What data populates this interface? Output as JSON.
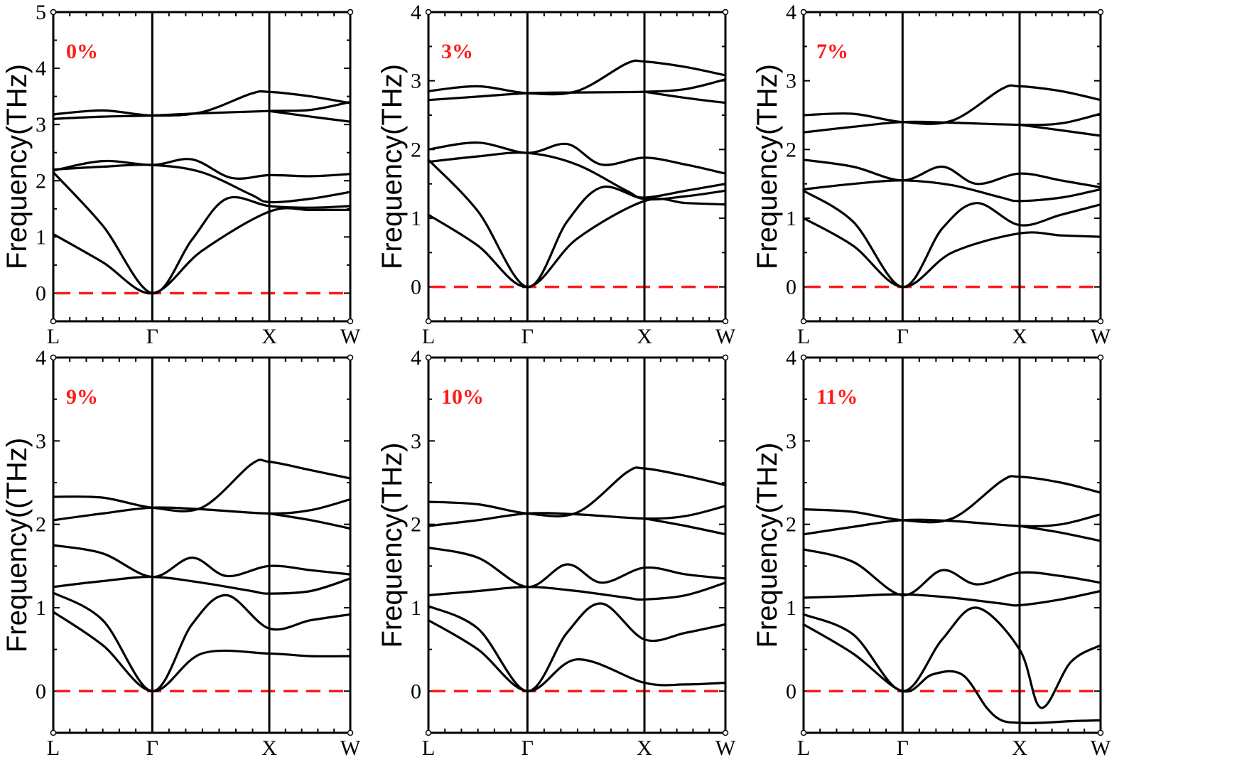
{
  "chart_data": [
    {
      "type": "line",
      "annotation": "0%",
      "ylabel": "Frequency(THz)",
      "ylim": [
        -0.5,
        5
      ],
      "yticks": [
        0,
        1,
        2,
        3,
        4,
        5
      ],
      "x_range": [
        0,
        3
      ],
      "kpoints": [
        {
          "label": "L",
          "x": 0
        },
        {
          "label": "Γ",
          "x": 1
        },
        {
          "label": "X",
          "x": 2.182
        },
        {
          "label": "W",
          "x": 3
        }
      ],
      "zero_line": {
        "y": 0,
        "color": "#ff1a1a",
        "style": "dashed"
      },
      "series": [
        {
          "x": [
            0,
            0.5,
            1,
            1.5,
            2.182,
            2.6,
            3
          ],
          "y": [
            1.05,
            0.55,
            0,
            0.75,
            1.45,
            1.48,
            1.48
          ]
        },
        {
          "x": [
            0,
            0.5,
            1,
            1.4,
            1.75,
            2.182,
            2.6,
            3
          ],
          "y": [
            2.15,
            1.2,
            0,
            0.95,
            1.68,
            1.55,
            1.52,
            1.55
          ]
        },
        {
          "x": [
            0,
            0.5,
            1,
            1.5,
            2.0,
            2.182,
            2.6,
            3
          ],
          "y": [
            2.2,
            2.25,
            2.28,
            2.15,
            1.75,
            1.62,
            1.68,
            1.8
          ]
        },
        {
          "x": [
            0,
            0.5,
            1,
            1.4,
            1.8,
            2.182,
            2.6,
            3
          ],
          "y": [
            2.18,
            2.35,
            2.28,
            2.38,
            2.05,
            2.1,
            2.08,
            2.12
          ]
        },
        {
          "x": [
            0,
            0.5,
            1,
            1.5,
            2.182,
            2.6,
            3
          ],
          "y": [
            3.1,
            3.14,
            3.16,
            3.2,
            3.24,
            3.26,
            3.4
          ]
        },
        {
          "x": [
            0,
            0.5,
            1,
            1.5,
            2.0,
            2.182,
            2.6,
            3
          ],
          "y": [
            3.18,
            3.25,
            3.16,
            3.22,
            3.55,
            3.58,
            3.5,
            3.38
          ]
        },
        {
          "x": [
            2.182,
            2.6,
            3
          ],
          "y": [
            3.24,
            3.14,
            3.05
          ]
        }
      ]
    },
    {
      "type": "line",
      "annotation": "3%",
      "ylabel": "Frequency(THz)",
      "ylim": [
        -0.5,
        4
      ],
      "yticks": [
        0,
        1,
        2,
        3,
        4
      ],
      "x_range": [
        0,
        3
      ],
      "kpoints": [
        {
          "label": "L",
          "x": 0
        },
        {
          "label": "Γ",
          "x": 1
        },
        {
          "label": "X",
          "x": 2.182
        },
        {
          "label": "W",
          "x": 3
        }
      ],
      "zero_line": {
        "y": 0,
        "color": "#ff1a1a",
        "style": "dashed"
      },
      "series": [
        {
          "x": [
            0,
            0.5,
            1,
            1.5,
            2.182,
            2.6,
            3
          ],
          "y": [
            1.05,
            0.6,
            0,
            0.7,
            1.25,
            1.22,
            1.2
          ]
        },
        {
          "x": [
            0,
            0.5,
            1,
            1.4,
            1.75,
            2.182,
            2.6,
            3
          ],
          "y": [
            1.85,
            1.1,
            0,
            0.95,
            1.45,
            1.28,
            1.32,
            1.4
          ]
        },
        {
          "x": [
            0,
            0.5,
            1,
            1.5,
            2.0,
            2.182,
            2.6,
            3
          ],
          "y": [
            1.82,
            1.9,
            1.95,
            1.78,
            1.4,
            1.3,
            1.4,
            1.5
          ]
        },
        {
          "x": [
            0,
            0.5,
            1,
            1.4,
            1.75,
            2.182,
            2.6,
            3
          ],
          "y": [
            2.0,
            2.1,
            1.95,
            2.08,
            1.78,
            1.88,
            1.78,
            1.65
          ]
        },
        {
          "x": [
            0,
            0.5,
            1,
            1.5,
            2.182,
            2.6,
            3
          ],
          "y": [
            2.72,
            2.77,
            2.82,
            2.83,
            2.84,
            2.88,
            3.02
          ]
        },
        {
          "x": [
            0,
            0.5,
            1,
            1.5,
            2.0,
            2.182,
            2.6,
            3
          ],
          "y": [
            2.85,
            2.92,
            2.82,
            2.85,
            3.25,
            3.28,
            3.2,
            3.08
          ]
        },
        {
          "x": [
            2.182,
            2.6,
            3
          ],
          "y": [
            2.84,
            2.75,
            2.68
          ]
        }
      ]
    },
    {
      "type": "line",
      "annotation": "7%",
      "ylabel": "Frequency(THz)",
      "ylim": [
        -0.5,
        4
      ],
      "yticks": [
        0,
        1,
        2,
        3,
        4
      ],
      "x_range": [
        0,
        3
      ],
      "kpoints": [
        {
          "label": "L",
          "x": 0
        },
        {
          "label": "Γ",
          "x": 1
        },
        {
          "label": "X",
          "x": 2.182
        },
        {
          "label": "W",
          "x": 3
        }
      ],
      "zero_line": {
        "y": 0,
        "color": "#ff1a1a",
        "style": "dashed"
      },
      "series": [
        {
          "x": [
            0,
            0.5,
            1,
            1.5,
            2.182,
            2.6,
            3
          ],
          "y": [
            1.0,
            0.6,
            0,
            0.5,
            0.78,
            0.75,
            0.73
          ]
        },
        {
          "x": [
            0,
            0.5,
            1,
            1.4,
            1.75,
            2.182,
            2.6,
            3
          ],
          "y": [
            1.4,
            0.95,
            0,
            0.85,
            1.22,
            0.9,
            1.05,
            1.2
          ]
        },
        {
          "x": [
            0,
            0.5,
            1,
            1.5,
            2.0,
            2.182,
            2.6,
            3
          ],
          "y": [
            1.42,
            1.5,
            1.55,
            1.48,
            1.3,
            1.25,
            1.3,
            1.42
          ]
        },
        {
          "x": [
            0,
            0.5,
            1,
            1.4,
            1.75,
            2.182,
            2.6,
            3
          ],
          "y": [
            1.85,
            1.75,
            1.55,
            1.75,
            1.5,
            1.65,
            1.55,
            1.45
          ]
        },
        {
          "x": [
            0,
            0.5,
            1,
            1.5,
            2.182,
            2.6,
            3
          ],
          "y": [
            2.25,
            2.33,
            2.4,
            2.39,
            2.36,
            2.38,
            2.52
          ]
        },
        {
          "x": [
            0,
            0.5,
            1,
            1.5,
            2.0,
            2.182,
            2.6,
            3
          ],
          "y": [
            2.5,
            2.52,
            2.4,
            2.42,
            2.88,
            2.92,
            2.85,
            2.72
          ]
        },
        {
          "x": [
            2.182,
            2.6,
            3
          ],
          "y": [
            2.36,
            2.28,
            2.2
          ]
        }
      ]
    },
    {
      "type": "line",
      "annotation": "9%",
      "ylabel": "Frequency((THz)",
      "ylim": [
        -0.5,
        4
      ],
      "yticks": [
        0,
        1,
        2,
        3,
        4
      ],
      "x_range": [
        0,
        3
      ],
      "kpoints": [
        {
          "label": "L",
          "x": 0
        },
        {
          "label": "Γ",
          "x": 1
        },
        {
          "label": "X",
          "x": 2.182
        },
        {
          "label": "W",
          "x": 3
        }
      ],
      "zero_line": {
        "y": 0,
        "color": "#ff1a1a",
        "style": "dashed"
      },
      "series": [
        {
          "x": [
            0,
            0.5,
            1,
            1.5,
            2.182,
            2.6,
            3
          ],
          "y": [
            0.95,
            0.55,
            0,
            0.45,
            0.45,
            0.42,
            0.42
          ]
        },
        {
          "x": [
            0,
            0.5,
            1,
            1.4,
            1.75,
            2.182,
            2.6,
            3
          ],
          "y": [
            1.18,
            0.85,
            0,
            0.8,
            1.15,
            0.75,
            0.85,
            0.92
          ]
        },
        {
          "x": [
            0,
            0.5,
            1,
            1.5,
            2.0,
            2.182,
            2.6,
            3
          ],
          "y": [
            1.25,
            1.32,
            1.37,
            1.3,
            1.2,
            1.17,
            1.2,
            1.35
          ]
        },
        {
          "x": [
            0,
            0.5,
            1,
            1.4,
            1.75,
            2.182,
            2.6,
            3
          ],
          "y": [
            1.75,
            1.65,
            1.37,
            1.6,
            1.38,
            1.5,
            1.45,
            1.4
          ]
        },
        {
          "x": [
            0,
            0.5,
            1,
            1.5,
            2.182,
            2.6,
            3
          ],
          "y": [
            2.05,
            2.13,
            2.2,
            2.18,
            2.13,
            2.17,
            2.3
          ]
        },
        {
          "x": [
            0,
            0.5,
            1,
            1.5,
            2.0,
            2.182,
            2.6,
            3
          ],
          "y": [
            2.33,
            2.32,
            2.2,
            2.2,
            2.72,
            2.75,
            2.65,
            2.55
          ]
        },
        {
          "x": [
            2.182,
            2.6,
            3
          ],
          "y": [
            2.13,
            2.05,
            1.95
          ]
        }
      ]
    },
    {
      "type": "line",
      "annotation": "10%",
      "ylabel": "Frequency(THz)",
      "ylim": [
        -0.5,
        4
      ],
      "yticks": [
        0,
        1,
        2,
        3,
        4
      ],
      "x_range": [
        0,
        3
      ],
      "kpoints": [
        {
          "label": "L",
          "x": 0
        },
        {
          "label": "Γ",
          "x": 1
        },
        {
          "label": "X",
          "x": 2.182
        },
        {
          "label": "W",
          "x": 3
        }
      ],
      "zero_line": {
        "y": 0,
        "color": "#ff1a1a",
        "style": "dashed"
      },
      "series": [
        {
          "x": [
            0,
            0.5,
            1,
            1.5,
            2.182,
            2.6,
            3
          ],
          "y": [
            0.85,
            0.5,
            0,
            0.38,
            0.1,
            0.08,
            0.1
          ]
        },
        {
          "x": [
            0,
            0.5,
            1,
            1.4,
            1.75,
            2.182,
            2.6,
            3
          ],
          "y": [
            1.02,
            0.75,
            0,
            0.7,
            1.05,
            0.62,
            0.7,
            0.8
          ]
        },
        {
          "x": [
            0,
            0.5,
            1,
            1.5,
            2.0,
            2.182,
            2.6,
            3
          ],
          "y": [
            1.15,
            1.2,
            1.25,
            1.2,
            1.12,
            1.1,
            1.15,
            1.3
          ]
        },
        {
          "x": [
            0,
            0.5,
            1,
            1.4,
            1.75,
            2.182,
            2.6,
            3
          ],
          "y": [
            1.72,
            1.6,
            1.25,
            1.52,
            1.3,
            1.48,
            1.4,
            1.35
          ]
        },
        {
          "x": [
            0,
            0.5,
            1,
            1.5,
            2.182,
            2.6,
            3
          ],
          "y": [
            1.98,
            2.05,
            2.13,
            2.12,
            2.07,
            2.1,
            2.22
          ]
        },
        {
          "x": [
            0,
            0.5,
            1,
            1.5,
            2.0,
            2.182,
            2.6,
            3
          ],
          "y": [
            2.27,
            2.24,
            2.13,
            2.14,
            2.62,
            2.67,
            2.58,
            2.47
          ]
        },
        {
          "x": [
            2.182,
            2.6,
            3
          ],
          "y": [
            2.07,
            1.98,
            1.88
          ]
        }
      ]
    },
    {
      "type": "line",
      "annotation": "11%",
      "ylabel": "Frequency(THz)",
      "ylim": [
        -0.5,
        4
      ],
      "yticks": [
        0,
        1,
        2,
        3,
        4
      ],
      "x_range": [
        0,
        3
      ],
      "kpoints": [
        {
          "label": "L",
          "x": 0
        },
        {
          "label": "Γ",
          "x": 1
        },
        {
          "label": "X",
          "x": 2.182
        },
        {
          "label": "W",
          "x": 3
        }
      ],
      "zero_line": {
        "y": 0,
        "color": "#ff1a1a",
        "style": "dashed"
      },
      "series": [
        {
          "x": [
            0,
            0.5,
            1,
            1.3,
            1.6,
            1.85,
            2.0,
            2.182,
            2.4,
            2.7,
            3
          ],
          "y": [
            0.8,
            0.45,
            0,
            0.2,
            0.2,
            -0.2,
            -0.35,
            -0.38,
            -0.38,
            -0.36,
            -0.35
          ]
        },
        {
          "x": [
            0,
            0.5,
            1,
            1.4,
            1.75,
            2.182,
            2.4,
            2.7,
            3
          ],
          "y": [
            0.92,
            0.68,
            0,
            0.62,
            1.0,
            0.5,
            -0.2,
            0.35,
            0.55
          ]
        },
        {
          "x": [
            0,
            0.5,
            1,
            1.5,
            2.0,
            2.182,
            2.6,
            3
          ],
          "y": [
            1.12,
            1.14,
            1.16,
            1.12,
            1.05,
            1.03,
            1.1,
            1.2
          ]
        },
        {
          "x": [
            0,
            0.5,
            1,
            1.4,
            1.75,
            2.182,
            2.6,
            3
          ],
          "y": [
            1.7,
            1.55,
            1.15,
            1.45,
            1.28,
            1.42,
            1.38,
            1.3
          ]
        },
        {
          "x": [
            0,
            0.5,
            1,
            1.5,
            2.182,
            2.6,
            3
          ],
          "y": [
            1.88,
            1.97,
            2.05,
            2.04,
            1.98,
            2.0,
            2.12
          ]
        },
        {
          "x": [
            0,
            0.5,
            1,
            1.5,
            2.0,
            2.182,
            2.6,
            3
          ],
          "y": [
            2.18,
            2.15,
            2.05,
            2.07,
            2.52,
            2.57,
            2.5,
            2.38
          ]
        },
        {
          "x": [
            2.182,
            2.6,
            3
          ],
          "y": [
            1.98,
            1.9,
            1.8
          ]
        }
      ]
    }
  ]
}
